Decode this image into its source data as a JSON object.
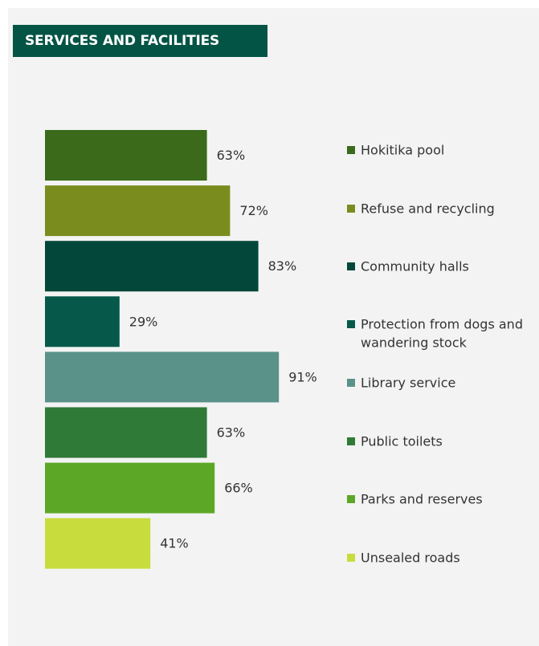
{
  "title": "SERVICES AND FACILITIES",
  "chart_data": {
    "type": "bar",
    "orientation": "horizontal",
    "categories": [
      "Hokitika pool",
      "Refuse and recycling",
      "Community halls",
      "Protection from dogs and wandering stock",
      "Library service",
      "Public toilets",
      "Parks and reserves",
      "Unsealed roads"
    ],
    "legend_lines": [
      [
        "Hokitika pool"
      ],
      [
        "Refuse and recycling"
      ],
      [
        "Community halls"
      ],
      [
        "Protection from dogs and",
        "wandering stock"
      ],
      [
        "Library service"
      ],
      [
        "Public toilets"
      ],
      [
        "Parks and reserves"
      ],
      [
        "Unsealed roads"
      ]
    ],
    "values": [
      63,
      72,
      83,
      29,
      91,
      63,
      66,
      41
    ],
    "value_labels": [
      "63%",
      "72%",
      "83%",
      "29%",
      "91%",
      "63%",
      "66%",
      "41%"
    ],
    "colors": [
      "#3a6a1a",
      "#7a8c1e",
      "#03473a",
      "#06594a",
      "#5a928a",
      "#2f7a36",
      "#5ca826",
      "#c8dc3e"
    ],
    "unit": "%",
    "xlim": [
      0,
      100
    ],
    "grid": false,
    "legend_position": "right"
  }
}
